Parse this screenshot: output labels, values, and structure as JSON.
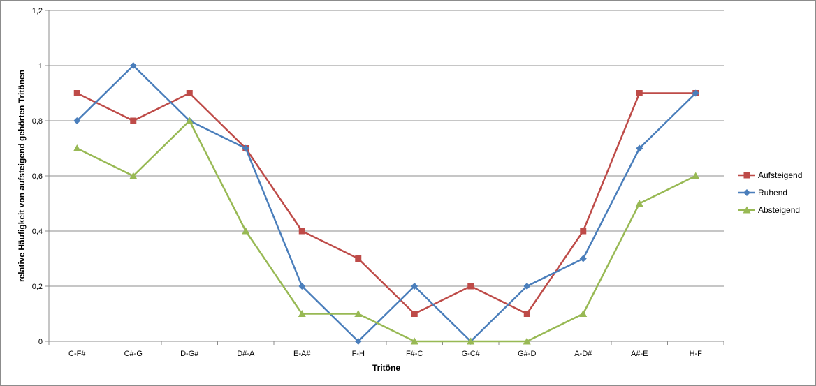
{
  "chart_data": {
    "type": "line",
    "title": "",
    "xlabel": "Tritöne",
    "ylabel": "relative Häufigkeit von aufsteigend gehörten Tritönen",
    "categories": [
      "C-F#",
      "C#-G",
      "D-G#",
      "D#-A",
      "E-A#",
      "F-H",
      "F#-C",
      "G-C#",
      "G#-D",
      "A-D#",
      "A#-E",
      "H-F"
    ],
    "ylim": [
      0,
      1.2
    ],
    "yticks": [
      "0",
      "0,2",
      "0,4",
      "0,6",
      "0,8",
      "1",
      "1,2"
    ],
    "ytick_values": [
      0,
      0.2,
      0.4,
      0.6,
      0.8,
      1.0,
      1.2
    ],
    "grid": true,
    "legend_position": "right",
    "series": [
      {
        "name": "Aufsteigend",
        "color": "#be4b48",
        "marker": "square",
        "values": [
          0.9,
          0.8,
          0.9,
          0.7,
          0.4,
          0.3,
          0.1,
          0.2,
          0.1,
          0.4,
          0.9,
          0.9
        ]
      },
      {
        "name": "Ruhend",
        "color": "#4a7ebb",
        "marker": "diamond",
        "values": [
          0.8,
          1.0,
          0.8,
          0.7,
          0.2,
          0.0,
          0.2,
          0.0,
          0.2,
          0.3,
          0.7,
          0.9
        ]
      },
      {
        "name": "Absteigend",
        "color": "#98b954",
        "marker": "triangle",
        "values": [
          0.7,
          0.6,
          0.8,
          0.4,
          0.1,
          0.1,
          0.0,
          0.0,
          0.0,
          0.1,
          0.5,
          0.6
        ]
      }
    ]
  }
}
